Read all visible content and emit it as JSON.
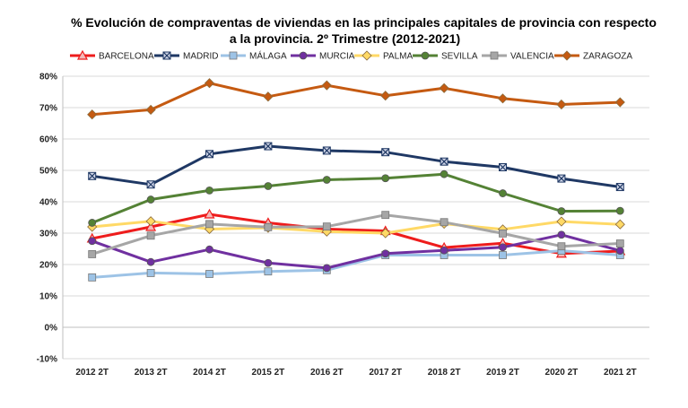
{
  "chart_data": {
    "type": "line",
    "title_line1": "% Evolución de compraventas de viviendas en las principales capitales de provincia con respecto",
    "title_line2": "a la provincia.  2º Trimestre (2012-2021)",
    "categories": [
      "2012 2T",
      "2013 2T",
      "2014 2T",
      "2015 2T",
      "2016 2T",
      "2017 2T",
      "2018 2T",
      "2019 2T",
      "2020 2T",
      "2021 2T"
    ],
    "ylim": [
      -10,
      80
    ],
    "yticks": [
      -10,
      0,
      10,
      20,
      30,
      40,
      50,
      60,
      70,
      80
    ],
    "ytick_labels": [
      "-10%",
      "0%",
      "10%",
      "20%",
      "30%",
      "40%",
      "50%",
      "60%",
      "70%",
      "80%"
    ],
    "grid": true,
    "legend_position": "top",
    "series": [
      {
        "name": "BARCELONA",
        "color": "#ee1c1c",
        "marker": "triangle",
        "values": [
          28.3,
          32.0,
          36.0,
          33.3,
          31.3,
          30.7,
          25.4,
          26.8,
          23.5,
          24.3
        ]
      },
      {
        "name": "MADRID",
        "color": "#1f3864",
        "marker": "x",
        "values": [
          48.2,
          45.5,
          55.2,
          57.7,
          56.3,
          55.8,
          52.8,
          51.0,
          47.4,
          44.7
        ]
      },
      {
        "name": "MÁLAGA",
        "color": "#9dc3e6",
        "marker": "square",
        "values": [
          15.9,
          17.3,
          17.0,
          17.8,
          18.2,
          23.0,
          23.0,
          23.0,
          24.4,
          23.0
        ]
      },
      {
        "name": "MURCIA",
        "color": "#7030a0",
        "marker": "circle",
        "values": [
          27.5,
          20.8,
          24.8,
          20.5,
          18.9,
          23.5,
          24.5,
          25.5,
          29.5,
          24.4
        ]
      },
      {
        "name": "PALMA",
        "color": "#ffd966",
        "marker": "diamond",
        "values": [
          32.0,
          33.8,
          31.3,
          31.7,
          30.5,
          30.0,
          33.0,
          31.2,
          33.7,
          32.8
        ]
      },
      {
        "name": "SEVILLA",
        "color": "#548235",
        "marker": "circle",
        "values": [
          33.3,
          40.7,
          43.6,
          45.0,
          47.0,
          47.5,
          48.8,
          42.7,
          37.0,
          37.1
        ]
      },
      {
        "name": "VALENCIA",
        "color": "#a6a6a6",
        "marker": "square",
        "values": [
          23.3,
          29.2,
          32.9,
          31.9,
          32.1,
          35.8,
          33.5,
          29.9,
          25.8,
          26.7
        ]
      },
      {
        "name": "ZARAGOZA",
        "color": "#c55a11",
        "marker": "diamond",
        "values": [
          67.8,
          69.3,
          77.8,
          73.5,
          77.1,
          73.8,
          76.2,
          72.9,
          71.0,
          71.7
        ]
      }
    ]
  }
}
